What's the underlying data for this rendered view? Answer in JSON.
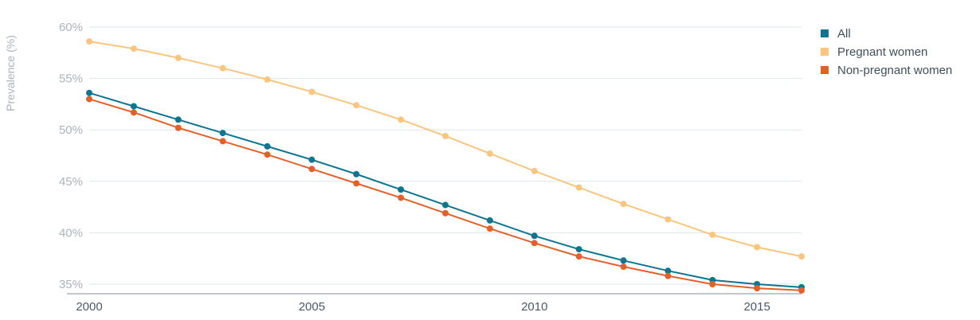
{
  "chart_data": {
    "type": "line",
    "title": "",
    "xlabel": "",
    "ylabel": "Prevalence (%)",
    "x": [
      2000,
      2001,
      2002,
      2003,
      2004,
      2005,
      2006,
      2007,
      2008,
      2009,
      2010,
      2011,
      2012,
      2013,
      2014,
      2015,
      2016
    ],
    "xticks": [
      "2000",
      "2005",
      "2010",
      "2015"
    ],
    "yticks": [
      "35%",
      "40%",
      "45%",
      "50%",
      "55%",
      "60%"
    ],
    "ylim": [
      34,
      60
    ],
    "xlim": [
      2000,
      2016
    ],
    "grid": true,
    "legend_position": "top-right",
    "series": [
      {
        "name": "All",
        "color": "#0e7490",
        "values": [
          53.6,
          52.3,
          51.0,
          49.7,
          48.4,
          47.1,
          45.7,
          44.2,
          42.7,
          41.2,
          39.7,
          38.4,
          37.3,
          36.3,
          35.4,
          35.0,
          34.7
        ]
      },
      {
        "name": "Pregnant women",
        "color": "#f9c57f",
        "values": [
          58.6,
          57.9,
          57.0,
          56.0,
          54.9,
          53.7,
          52.4,
          51.0,
          49.4,
          47.7,
          46.0,
          44.4,
          42.8,
          41.3,
          39.8,
          38.6,
          37.7
        ]
      },
      {
        "name": "Non-pregnant women",
        "color": "#e2612a",
        "values": [
          53.0,
          51.7,
          50.2,
          48.9,
          47.6,
          46.2,
          44.8,
          43.4,
          41.9,
          40.4,
          39.0,
          37.7,
          36.7,
          35.8,
          35.0,
          34.6,
          34.4
        ]
      }
    ]
  }
}
